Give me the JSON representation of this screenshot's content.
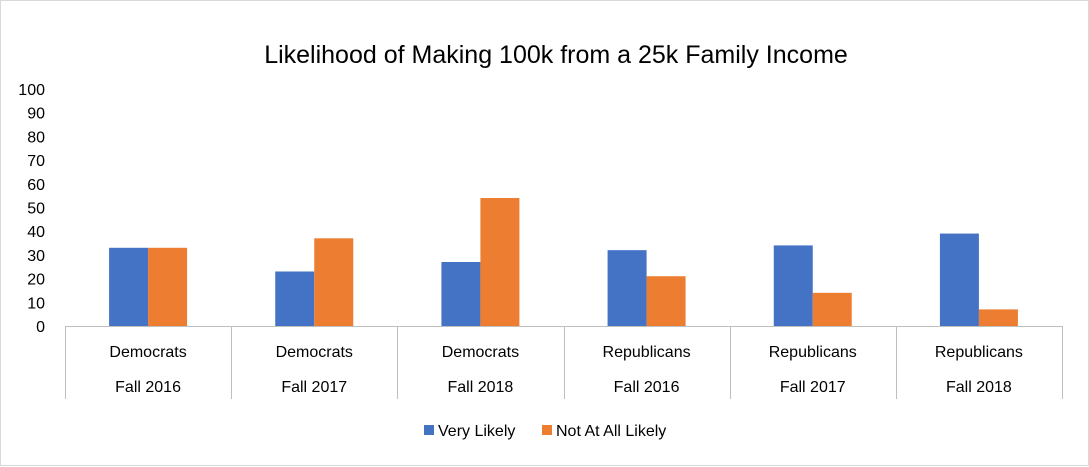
{
  "chart_data": {
    "type": "bar",
    "title": "Likelihood of Making 100k from a 25k Family Income",
    "ylim": [
      0,
      100
    ],
    "yticks": [
      0,
      10,
      20,
      30,
      40,
      50,
      60,
      70,
      80,
      90,
      100
    ],
    "grid": false,
    "legend_position": "bottom",
    "categories": [
      {
        "group": "Democrats",
        "period": "Fall 2016"
      },
      {
        "group": "Democrats",
        "period": "Fall 2017"
      },
      {
        "group": "Democrats",
        "period": "Fall 2018"
      },
      {
        "group": "Republicans",
        "period": "Fall 2016"
      },
      {
        "group": "Republicans",
        "period": "Fall 2017"
      },
      {
        "group": "Republicans",
        "period": "Fall 2018"
      }
    ],
    "series": [
      {
        "name": "Very Likely",
        "color": "#4472c4",
        "values": [
          33,
          23,
          27,
          32,
          34,
          39
        ]
      },
      {
        "name": "Not At All Likely",
        "color": "#ed7d31",
        "values": [
          33,
          37,
          54,
          21,
          14,
          7
        ]
      }
    ]
  }
}
